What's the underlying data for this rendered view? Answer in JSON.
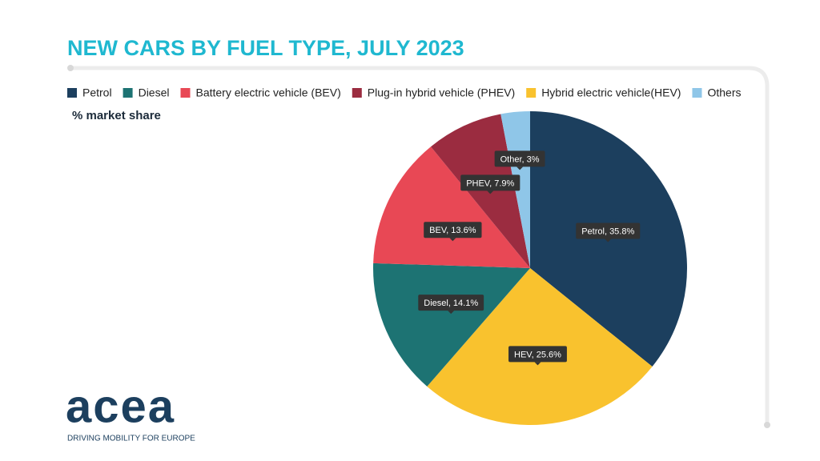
{
  "chart_data": {
    "type": "pie",
    "title": "NEW CARS BY FUEL TYPE, JULY 2023",
    "subtitle": "% market share",
    "categories": [
      "Petrol",
      "Diesel",
      "Battery electric vehicle (BEV)",
      "Plug-in hybrid vehicle (PHEV)",
      "Hybrid electric vehicle(HEV)",
      "Others"
    ],
    "values": [
      35.8,
      14.1,
      13.6,
      7.9,
      25.6,
      3
    ],
    "value_labels": [
      "Petrol, 35.8%",
      "Diesel, 14.1%",
      "BEV, 13.6%",
      "PHEV, 7.9%",
      "HEV, 25.6%",
      "Other, 3%"
    ],
    "colors": [
      "#1c3f5e",
      "#1d7373",
      "#e84855",
      "#9b2c40",
      "#f9c22e",
      "#8fc6e8"
    ],
    "legend": "top",
    "logo_text": "acea",
    "tagline": "DRIVING MOBILITY FOR EUROPE"
  }
}
